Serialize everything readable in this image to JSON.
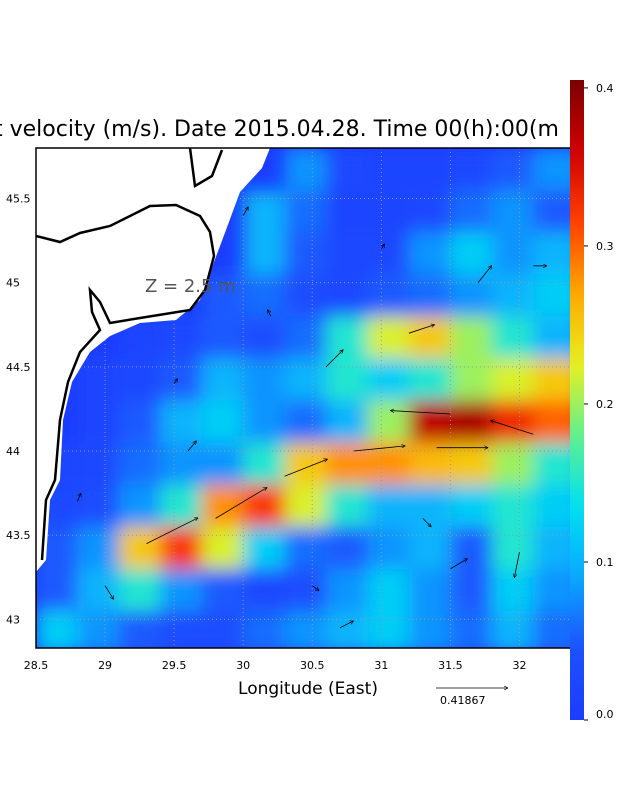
{
  "chart_data": {
    "type": "vector-heatmap",
    "title": "t velocity (m/s). Date 2015.04.28. Time 00(h):00(m",
    "annotation": "Z = 2.5 m",
    "xlabel": "Longitude (East)",
    "xlim": [
      28.5,
      32.46
    ],
    "ylim": [
      42.83,
      45.8
    ],
    "xticks": [
      28.5,
      29,
      29.5,
      30,
      30.5,
      31,
      31.5,
      32
    ],
    "yticks": [
      43,
      43.5,
      44,
      44.5,
      45,
      45.5
    ],
    "grid": true,
    "x_edges": [
      28.5,
      28.8,
      29.1,
      29.4,
      29.7,
      30.0,
      30.3,
      30.6,
      30.9,
      31.2,
      31.5,
      31.8,
      32.1,
      32.46
    ],
    "y_edges": [
      45.8,
      45.55,
      45.3,
      45.05,
      44.8,
      44.55,
      44.3,
      44.05,
      43.8,
      43.55,
      43.3,
      43.05,
      42.8
    ],
    "speed": [
      [
        null,
        null,
        null,
        null,
        null,
        null,
        0.08,
        0.03,
        0.02,
        0.02,
        0.03,
        0.05,
        0.08
      ],
      [
        null,
        null,
        null,
        null,
        null,
        0.1,
        0.06,
        0.02,
        0.02,
        0.03,
        0.06,
        0.08,
        0.05
      ],
      [
        null,
        null,
        null,
        null,
        null,
        0.1,
        0.05,
        0.03,
        0.03,
        0.08,
        0.12,
        0.08,
        0.1
      ],
      [
        null,
        null,
        null,
        null,
        0.05,
        0.06,
        0.04,
        0.03,
        0.05,
        0.06,
        0.08,
        0.1,
        0.12
      ],
      [
        null,
        null,
        0.02,
        0.03,
        0.05,
        0.04,
        0.06,
        0.15,
        0.22,
        0.25,
        0.2,
        0.15,
        0.1
      ],
      [
        null,
        0.02,
        0.03,
        0.05,
        0.1,
        0.08,
        0.1,
        0.15,
        0.12,
        0.15,
        0.2,
        0.22,
        0.25
      ],
      [
        null,
        0.02,
        0.05,
        0.1,
        0.12,
        0.08,
        0.06,
        0.1,
        0.2,
        0.37,
        0.38,
        0.33,
        0.3
      ],
      [
        0.02,
        0.03,
        0.06,
        0.08,
        0.08,
        0.15,
        0.25,
        0.28,
        0.28,
        0.26,
        0.25,
        0.2,
        0.15
      ],
      [
        0.03,
        0.04,
        0.08,
        0.15,
        0.28,
        0.32,
        0.22,
        0.15,
        0.1,
        0.1,
        0.12,
        0.15,
        0.12
      ],
      [
        0.05,
        0.08,
        0.25,
        0.32,
        0.22,
        0.12,
        0.06,
        0.05,
        0.08,
        0.1,
        0.05,
        0.15,
        0.1
      ],
      [
        0.05,
        0.1,
        0.15,
        0.08,
        0.05,
        0.03,
        0.04,
        0.08,
        0.12,
        0.08,
        0.05,
        0.12,
        0.08
      ],
      [
        0.12,
        0.08,
        0.05,
        0.04,
        0.04,
        0.06,
        0.08,
        0.1,
        0.12,
        0.08,
        0.06,
        0.1,
        0.06
      ]
    ],
    "vectors": {
      "lon": [
        29.3,
        29.8,
        30.3,
        30.8,
        31.4,
        31.5,
        32.1,
        30.6,
        31.2,
        29.6,
        29.0,
        28.8,
        30.5,
        31.5,
        32.0,
        30.0,
        31.0,
        31.7,
        32.1,
        30.2,
        29.5,
        31.3,
        30.7
      ],
      "lat": [
        43.45,
        43.6,
        43.85,
        44.0,
        44.02,
        44.22,
        44.1,
        44.5,
        44.7,
        44.0,
        43.2,
        43.7,
        43.2,
        43.3,
        43.4,
        45.4,
        45.2,
        45.0,
        45.1,
        44.8,
        44.4,
        43.6,
        42.95
      ],
      "u": [
        0.3,
        0.3,
        0.25,
        0.3,
        0.3,
        -0.35,
        -0.25,
        0.1,
        0.15,
        0.05,
        0.05,
        0.02,
        0.04,
        0.1,
        -0.03,
        0.03,
        0.02,
        0.08,
        0.08,
        -0.02,
        0.02,
        0.05,
        0.08
      ],
      "v": [
        0.15,
        0.18,
        0.1,
        0.03,
        0,
        0.02,
        0.08,
        0.1,
        0.05,
        0.06,
        -0.08,
        0.05,
        -0.03,
        0.06,
        -0.15,
        0.05,
        0.03,
        0.1,
        0,
        0.04,
        0.03,
        -0.05,
        0.04
      ]
    },
    "reference_speed": 0.41867,
    "colormap": [
      "#1c3cff",
      "#1c50ff",
      "#0aa8ff",
      "#00e0f0",
      "#60f090",
      "#e8f020",
      "#ffa800",
      "#ff4000",
      "#d00000",
      "#7a0000"
    ],
    "colorbar": {
      "lim": [
        0,
        0.405
      ],
      "ticks": [
        {
          "value": 0,
          "label": "0.0"
        },
        0.1,
        0.2,
        0.3,
        0.4
      ]
    }
  }
}
